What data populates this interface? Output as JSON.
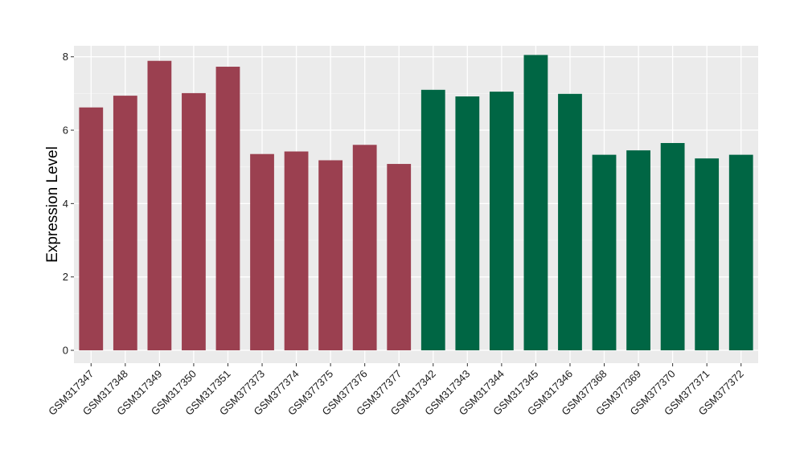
{
  "chart_data": {
    "type": "bar",
    "title": "",
    "xlabel": "",
    "ylabel": "Expression Level",
    "ylim": [
      -0.35,
      8.3
    ],
    "yticks": [
      0,
      2,
      4,
      6,
      8
    ],
    "grid": true,
    "legend": "none",
    "categories": [
      "GSM317347",
      "GSM317348",
      "GSM317349",
      "GSM317350",
      "GSM317351",
      "GSM377373",
      "GSM377374",
      "GSM377375",
      "GSM377376",
      "GSM377377",
      "GSM317342",
      "GSM317343",
      "GSM317344",
      "GSM317345",
      "GSM317346",
      "GSM377368",
      "GSM377369",
      "GSM377370",
      "GSM377371",
      "GSM377372"
    ],
    "values": [
      6.62,
      6.94,
      7.89,
      7.01,
      7.73,
      5.35,
      5.42,
      5.18,
      5.6,
      5.08,
      7.1,
      6.92,
      7.05,
      8.05,
      6.99,
      5.33,
      5.45,
      5.65,
      5.23,
      5.33
    ],
    "groups": [
      {
        "color": "#9b4050",
        "count": 10
      },
      {
        "color": "#006644",
        "count": 10
      }
    ],
    "colors": {
      "panel_background": "#ebebeb",
      "grid_major": "#ffffff",
      "grid_minor": "#f5f5f5",
      "tick": "#333333"
    }
  }
}
